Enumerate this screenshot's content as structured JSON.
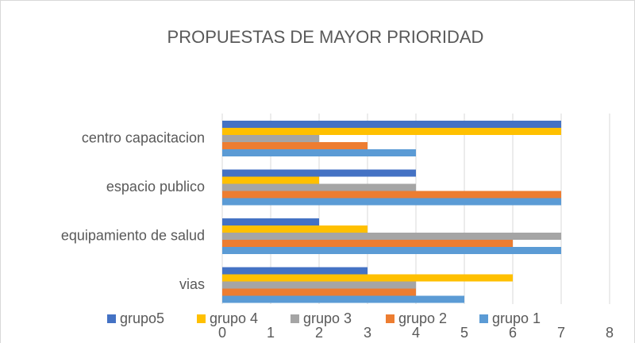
{
  "chart_data": {
    "type": "bar",
    "orientation": "horizontal",
    "title": "PROPUESTAS DE MAYOR PRIORIDAD",
    "categories": [
      "vias",
      "equipamiento de salud",
      "espacio publico",
      "centro capacitacion"
    ],
    "series": [
      {
        "name": "grupo5",
        "color": "#4472c4",
        "values": [
          3,
          2,
          4,
          7
        ]
      },
      {
        "name": "grupo 4",
        "color": "#ffc000",
        "values": [
          6,
          3,
          2,
          7
        ]
      },
      {
        "name": "grupo 3",
        "color": "#a5a5a5",
        "values": [
          4,
          7,
          4,
          2
        ]
      },
      {
        "name": "grupo 2",
        "color": "#ed7d31",
        "values": [
          4,
          6,
          7,
          3
        ]
      },
      {
        "name": "grupo 1",
        "color": "#5b9bd5",
        "values": [
          5,
          7,
          7,
          4
        ]
      }
    ],
    "xlim": [
      0,
      8
    ],
    "xticks": [
      0,
      1,
      2,
      3,
      4,
      5,
      6,
      7,
      8
    ],
    "grid": true,
    "legend": "bottom"
  }
}
